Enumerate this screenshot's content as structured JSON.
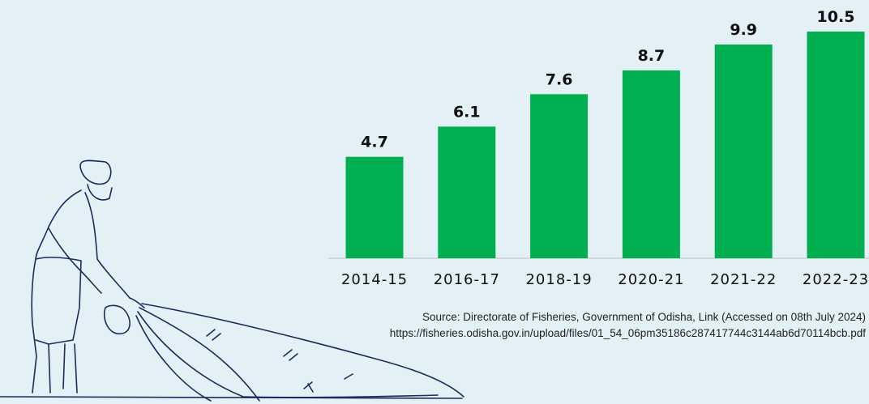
{
  "chart_data": {
    "type": "bar",
    "categories": [
      "2014-15",
      "2016-17",
      "2018-19",
      "2020-21",
      "2021-22",
      "2022-23"
    ],
    "values": [
      4.7,
      6.1,
      7.6,
      8.7,
      9.9,
      10.5
    ],
    "color": "#00b050",
    "ylim": [
      0,
      10.5
    ],
    "source": [
      "Source: Directorate of Fisheries, Government of Odisha, Link (Accessed on 08th July 2024)",
      "https://fisheries.odisha.gov.in/upload/files/01_54_06pm35186c287417744c3144ab6d70114bcb.pdf"
    ]
  }
}
